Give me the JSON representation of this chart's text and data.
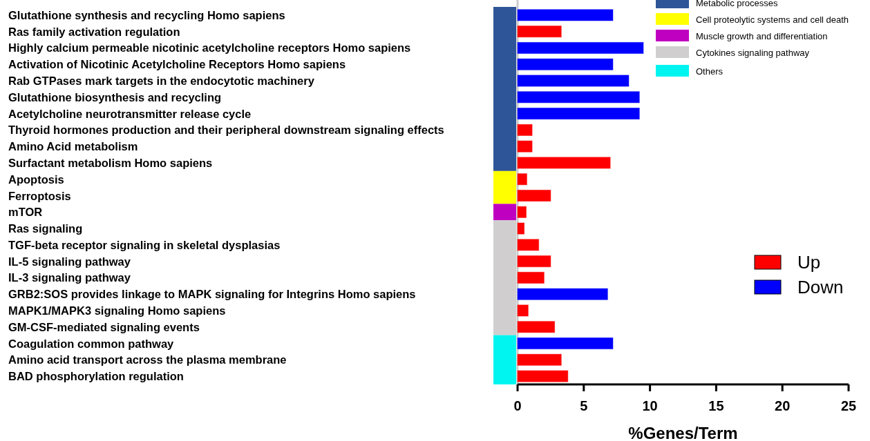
{
  "chart_data": {
    "type": "bar",
    "orientation": "horizontal",
    "xlabel": "%Genes/Term",
    "categories": [
      "Glutathione synthesis and recycling Homo sapiens",
      "Ras family activation regulation",
      "Highly calcium permeable nicotinic acetylcholine receptors Homo sapiens",
      "Activation of Nicotinic Acetylcholine Receptors Homo sapiens",
      "Rab GTPases mark targets in the endocytotic machinery",
      "Glutathione biosynthesis and recycling",
      "Acetylcholine neurotransmitter release cycle",
      "Thyroid hormones production and their peripheral downstream signaling effects",
      "Amino Acid metabolism",
      "Surfactant metabolism Homo sapiens",
      "Apoptosis",
      "Ferroptosis",
      "mTOR",
      "Ras signaling",
      "TGF-beta receptor signaling in skeletal dysplasias",
      "IL-5 signaling pathway",
      "IL-3 signaling pathway",
      "GRB2:SOS provides linkage to MAPK signaling for Integrins Homo sapiens",
      "MAPK1/MAPK3 signaling Homo sapiens",
      "GM-CSF-mediated signaling events",
      "Coagulation common pathway",
      "Amino acid transport across the plasma membrane",
      "BAD phosphorylation regulation"
    ],
    "series": [
      {
        "name": "Up",
        "color": "#ff0000",
        "values": [
          null,
          3.3,
          null,
          null,
          null,
          null,
          null,
          1.1,
          1.1,
          7.0,
          0.7,
          2.5,
          0.65,
          0.5,
          1.6,
          2.5,
          2.0,
          null,
          0.8,
          2.8,
          null,
          3.3,
          3.8
        ]
      },
      {
        "name": "Down",
        "color": "#0000ff",
        "values": [
          7.2,
          null,
          9.5,
          7.2,
          8.4,
          9.2,
          9.2,
          null,
          null,
          null,
          null,
          null,
          null,
          null,
          null,
          null,
          null,
          6.8,
          null,
          null,
          7.2,
          null,
          null
        ]
      }
    ],
    "xlim": [
      0,
      25
    ],
    "xticks": [
      0,
      5,
      10,
      15,
      20,
      25
    ],
    "legend": "right",
    "grid": false,
    "annotations": [
      "Metabolic processes",
      "Cell proteolytic systems and cell death",
      "Muscle growth and differentiation",
      "Cytokines signaling pathway",
      "Others"
    ]
  }
}
